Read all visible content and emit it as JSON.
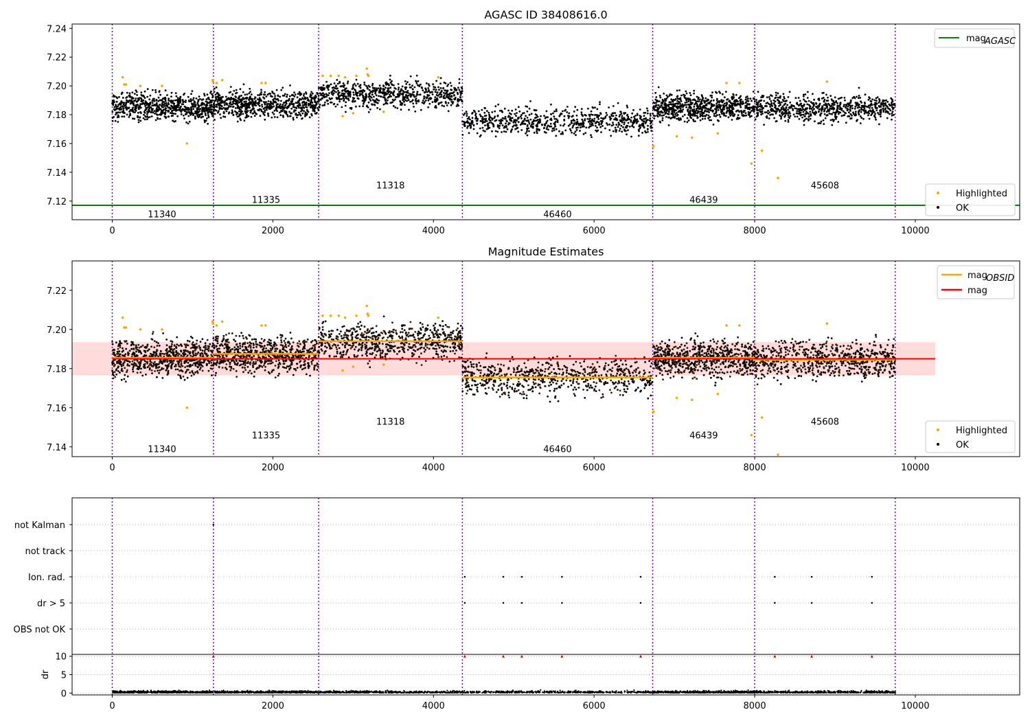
{
  "chart_data": [
    {
      "type": "scatter",
      "title": "AGASC ID 38408616.0",
      "xlim": [
        -500,
        11300
      ],
      "ylim": [
        7.107,
        7.243
      ],
      "x_ticks": [
        0,
        2000,
        4000,
        6000,
        8000,
        10000
      ],
      "y_ticks": [
        7.12,
        7.14,
        7.16,
        7.18,
        7.2,
        7.22,
        7.24
      ],
      "obsid_boundaries": [
        0,
        1260,
        2570,
        4360,
        6730,
        8000,
        9750
      ],
      "obsid_labels": [
        {
          "label": "11340",
          "x": 620,
          "y": 7.111
        },
        {
          "label": "11335",
          "x": 1915,
          "y": 7.121
        },
        {
          "label": "11318",
          "x": 3465,
          "y": 7.131
        },
        {
          "label": "46460",
          "x": 5545,
          "y": 7.111
        },
        {
          "label": "46439",
          "x": 7365,
          "y": 7.121
        },
        {
          "label": "45608",
          "x": 8875,
          "y": 7.131
        }
      ],
      "segments": [
        {
          "obsid": "11340",
          "x": [
            0,
            1260
          ],
          "mean": 7.1855,
          "spread": 0.0075
        },
        {
          "obsid": "11335",
          "x": [
            1260,
            2570
          ],
          "mean": 7.1875,
          "spread": 0.0075
        },
        {
          "obsid": "11318",
          "x": [
            2570,
            4360
          ],
          "mean": 7.194,
          "spread": 0.0075
        },
        {
          "obsid": "46460",
          "x": [
            4360,
            6730
          ],
          "mean": 7.1755,
          "spread": 0.0075
        },
        {
          "obsid": "46439",
          "x": [
            6730,
            8000
          ],
          "mean": 7.1855,
          "spread": 0.0075
        },
        {
          "obsid": "45608",
          "x": [
            8000,
            9750
          ],
          "mean": 7.1845,
          "spread": 0.0075
        }
      ],
      "series": [
        {
          "name": "mag_AGASC",
          "type": "hline",
          "y": 7.117,
          "color": "#008000"
        },
        {
          "name": "Highlighted",
          "type": "scatter",
          "color": "#ffa500",
          "x": [
            130,
            150,
            170,
            350,
            620,
            930,
            1250,
            1255,
            1300,
            1370,
            1860,
            1910,
            2620,
            2720,
            2820,
            2870,
            2900,
            3000,
            3040,
            3170,
            3180,
            3190,
            3380,
            4060,
            6740,
            7030,
            7220,
            7540,
            7650,
            7810,
            7960,
            8090,
            8290,
            8900
          ],
          "y": [
            7.206,
            7.201,
            7.201,
            7.2,
            7.2,
            7.16,
            7.204,
            7.203,
            7.202,
            7.204,
            7.202,
            7.202,
            7.207,
            7.207,
            7.207,
            7.179,
            7.206,
            7.181,
            7.207,
            7.212,
            7.208,
            7.207,
            7.182,
            7.206,
            7.158,
            7.165,
            7.164,
            7.167,
            7.202,
            7.202,
            7.146,
            7.155,
            7.136,
            7.203
          ]
        },
        {
          "name": "OK",
          "type": "scatter",
          "color": "#000000",
          "points_per_segment": 700
        }
      ],
      "legend": [
        {
          "text": "mag",
          "sub": "AGASC",
          "kind": "line",
          "color": "#008000"
        }
      ],
      "legend2": [
        {
          "text": "Highlighted",
          "kind": "point",
          "color": "#ffa500"
        },
        {
          "text": "OK",
          "kind": "point",
          "color": "#000000"
        }
      ]
    },
    {
      "type": "scatter",
      "title": "Magnitude Estimates",
      "xlim": [
        -500,
        11300
      ],
      "ylim": [
        7.135,
        7.235
      ],
      "x_ticks": [
        0,
        2000,
        4000,
        6000,
        8000,
        10000
      ],
      "y_ticks": [
        7.14,
        7.16,
        7.18,
        7.2,
        7.22
      ],
      "mag_line": {
        "y": 7.185,
        "x": [
          0,
          10250
        ],
        "color": "#ff0000"
      },
      "mag_band": {
        "y": [
          7.1765,
          7.1935
        ],
        "x": [
          -500,
          10250
        ],
        "color": "#ffcccc"
      },
      "obsid_labels": [
        {
          "label": "11340",
          "x": 620,
          "y": 7.139
        },
        {
          "label": "11335",
          "x": 1915,
          "y": 7.146
        },
        {
          "label": "11318",
          "x": 3465,
          "y": 7.153
        },
        {
          "label": "46460",
          "x": 5545,
          "y": 7.139
        },
        {
          "label": "46439",
          "x": 7365,
          "y": 7.146
        },
        {
          "label": "45608",
          "x": 8875,
          "y": 7.153
        }
      ],
      "legend": [
        {
          "text": "mag",
          "sub": "OBSID",
          "kind": "line",
          "color": "#ffa500"
        },
        {
          "text": "mag",
          "kind": "line",
          "color": "#ff0000"
        }
      ],
      "legend2": [
        {
          "text": "Highlighted",
          "kind": "point",
          "color": "#ffa500"
        },
        {
          "text": "OK",
          "kind": "point",
          "color": "#000000"
        }
      ]
    },
    {
      "type": "scatter",
      "title": "",
      "xlim": [
        -500,
        11300
      ],
      "flag_rows": [
        "not Kalman",
        "not track",
        "Ion. rad.",
        "dr > 5",
        "OBS not OK"
      ],
      "flags": {
        "not Kalman": [
          1260
        ],
        "not track": [],
        "Ion. rad.": [
          4390,
          4870,
          5100,
          5600,
          6580,
          8250,
          8710,
          9460
        ],
        "dr > 5": [
          4390,
          4870,
          5100,
          5600,
          6580,
          8250,
          8710,
          9460
        ],
        "OBS not OK": []
      },
      "dr": {
        "ylabel": "dr",
        "ylim": [
          -0.5,
          10.5
        ],
        "y_ticks": [
          0,
          5,
          10
        ],
        "x_ticks": [
          0,
          2000,
          4000,
          6000,
          8000,
          10000
        ],
        "high_points": {
          "x": [
            1260,
            4390,
            4870,
            5100,
            5600,
            6580,
            8250,
            8710,
            9460
          ],
          "y": [
            10,
            10,
            10,
            10,
            10,
            10,
            10,
            10,
            10
          ]
        }
      }
    }
  ]
}
